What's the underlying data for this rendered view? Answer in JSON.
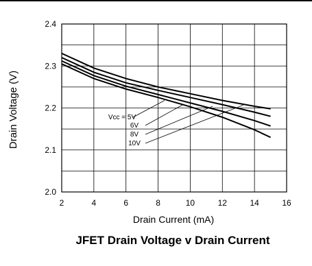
{
  "chart_data": {
    "type": "line",
    "title": "JFET Drain Voltage v Drain Current",
    "xlabel": "Drain Current (mA)",
    "ylabel": "Drain Voltage (V)",
    "xlim": [
      2,
      16
    ],
    "ylim": [
      2.0,
      2.4
    ],
    "xticks": [
      "2",
      "4",
      "6",
      "8",
      "10",
      "12",
      "14",
      "16"
    ],
    "yticks": [
      "2.0",
      "2.1",
      "2.2",
      "2.3",
      "2.4"
    ],
    "grid": true,
    "series": [
      {
        "name": "Vcc = 5V",
        "x": [
          2,
          4,
          6,
          8,
          10,
          12,
          14,
          15
        ],
        "y": [
          2.33,
          2.295,
          2.27,
          2.25,
          2.234,
          2.218,
          2.204,
          2.198
        ]
      },
      {
        "name": "6V",
        "x": [
          2,
          4,
          6,
          8,
          10,
          12,
          14,
          15
        ],
        "y": [
          2.32,
          2.285,
          2.26,
          2.242,
          2.225,
          2.208,
          2.19,
          2.18
        ]
      },
      {
        "name": "8V",
        "x": [
          2,
          4,
          6,
          8,
          10,
          12,
          14,
          15
        ],
        "y": [
          2.312,
          2.277,
          2.252,
          2.232,
          2.212,
          2.192,
          2.17,
          2.157
        ]
      },
      {
        "name": "10V",
        "x": [
          2,
          4,
          6,
          8,
          10,
          12,
          14,
          15
        ],
        "y": [
          2.305,
          2.27,
          2.245,
          2.225,
          2.203,
          2.178,
          2.148,
          2.13
        ]
      }
    ]
  }
}
